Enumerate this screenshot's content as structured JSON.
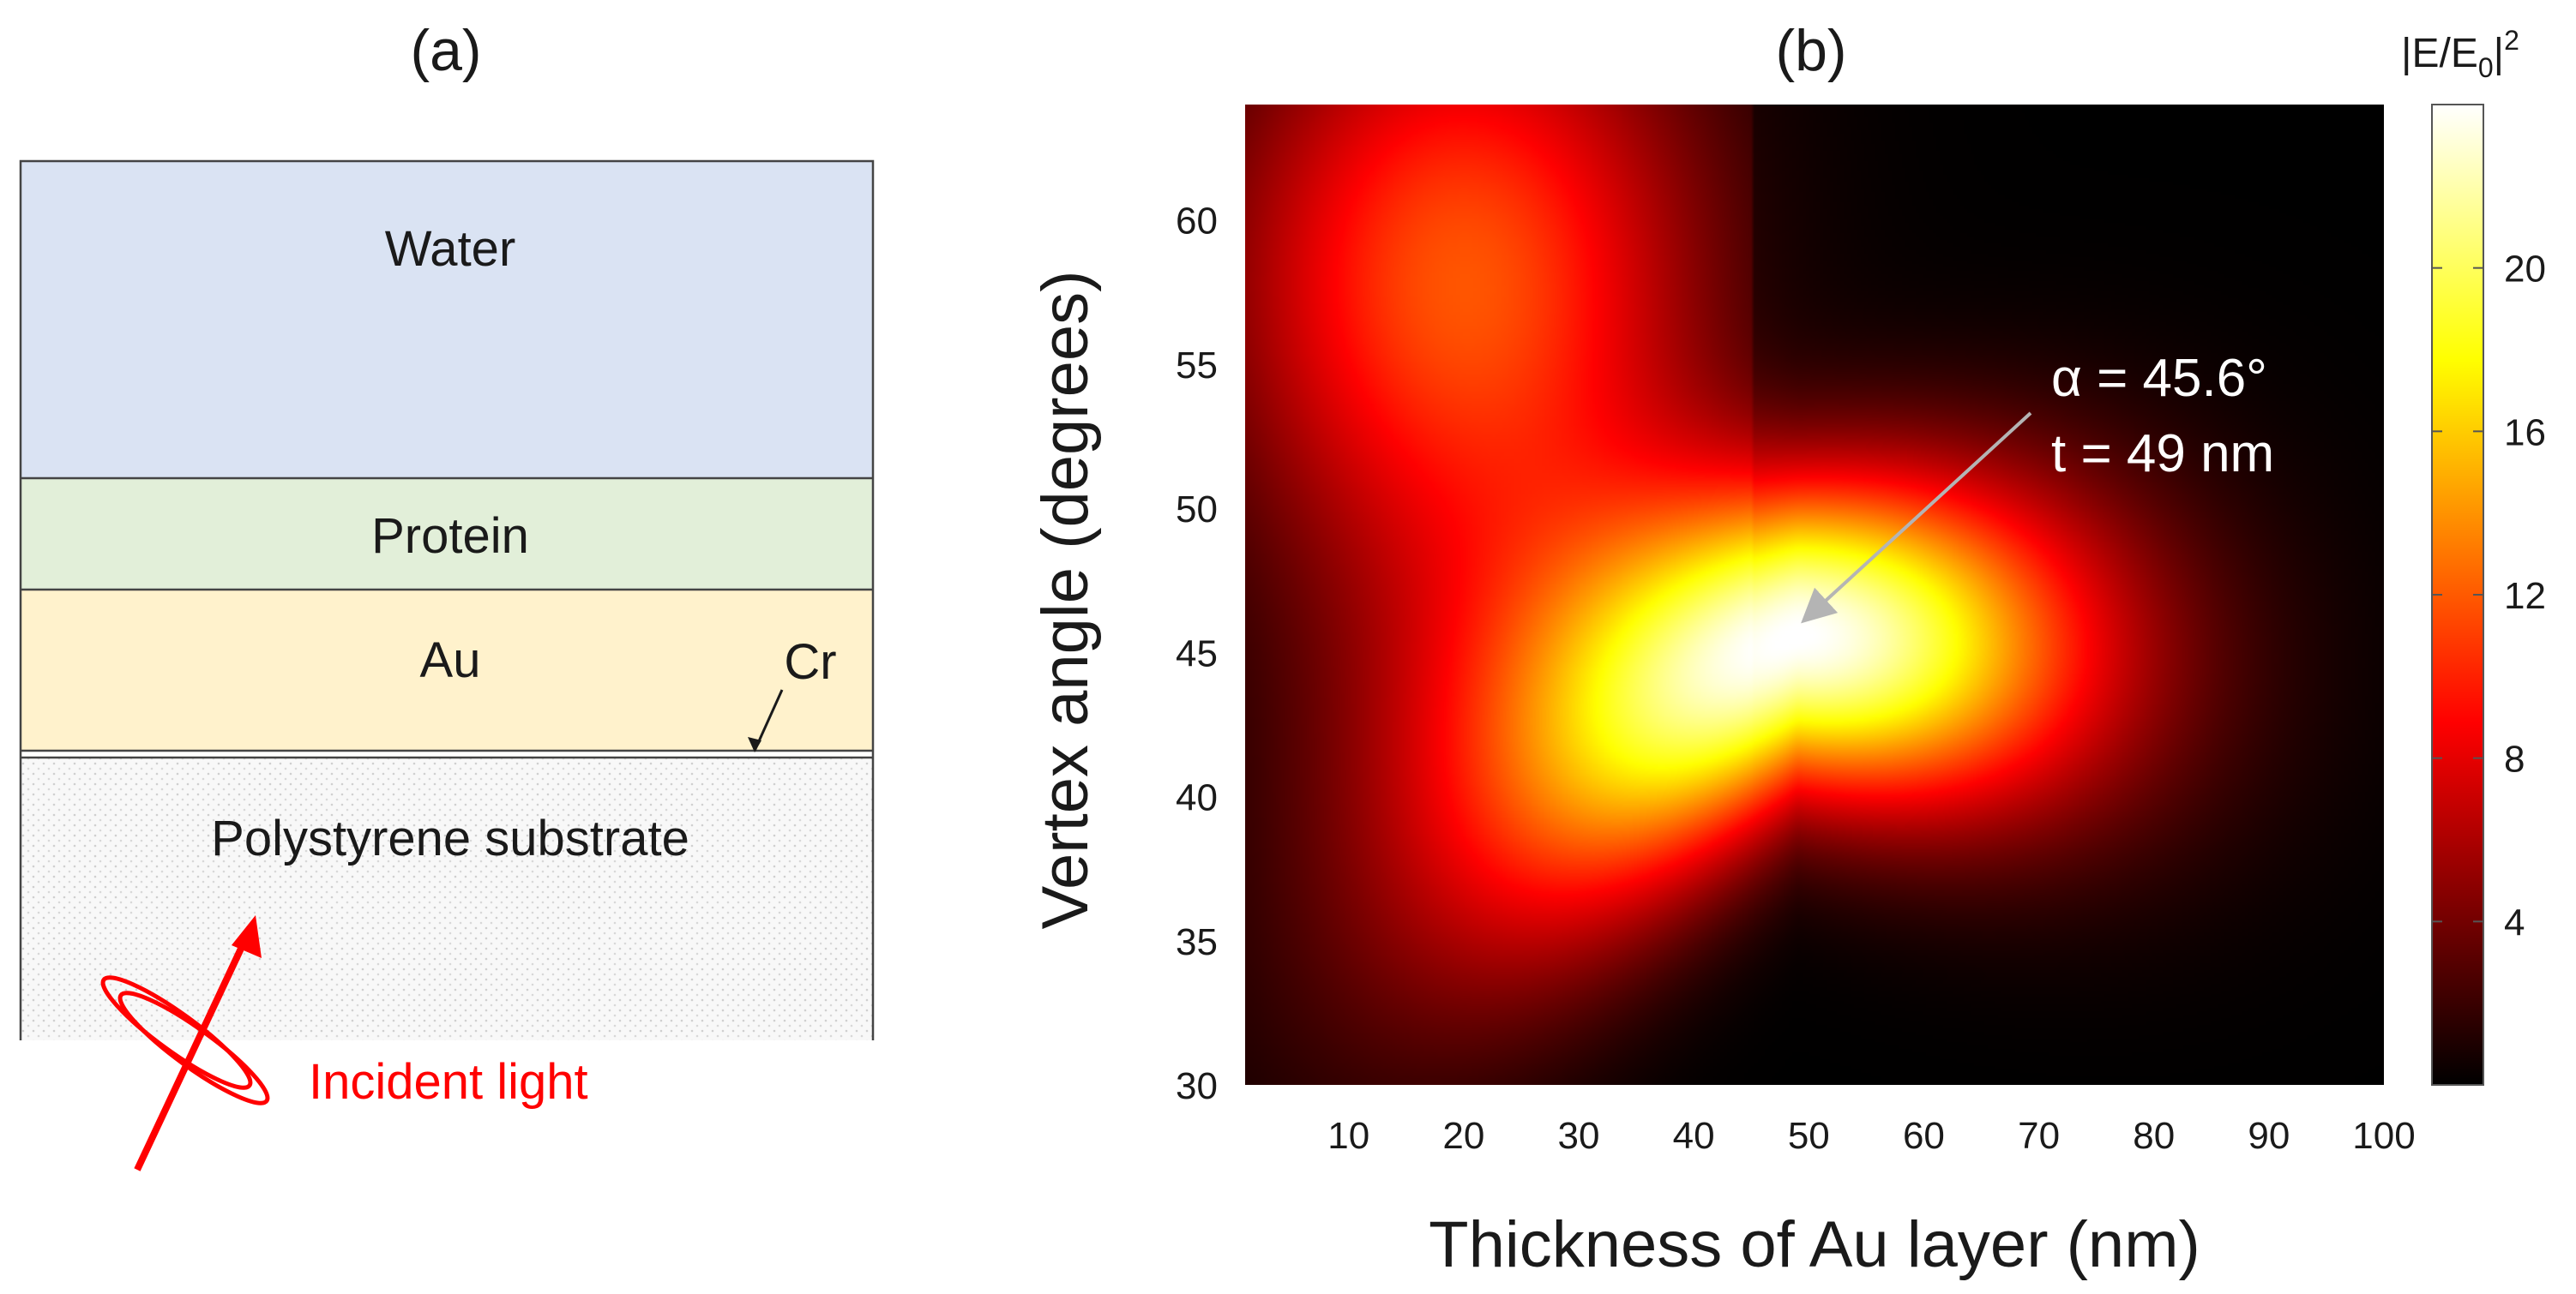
{
  "panels": {
    "a_label": "(a)",
    "b_label": "(b)"
  },
  "layers_diagram": {
    "layers": [
      {
        "name": "Water",
        "color": "#dae3f3"
      },
      {
        "name": "Protein",
        "color": "#e2efd9"
      },
      {
        "name": "Au",
        "color": "#fff2cc"
      },
      {
        "name": "Cr",
        "color": "#ffffff"
      },
      {
        "name": "Polystyrene substrate",
        "color": "#f7f7f7"
      }
    ],
    "incident_label": "Incident light",
    "incident_color": "#ff0000"
  },
  "chart_data": {
    "type": "heatmap",
    "title": "",
    "xlabel": "Thickness of Au layer (nm)",
    "ylabel": "Vertex angle (degrees)",
    "xlim": [
      1,
      100
    ],
    "ylim": [
      30,
      64
    ],
    "xticks": [
      10,
      20,
      30,
      40,
      50,
      60,
      70,
      80,
      90,
      100
    ],
    "yticks": [
      30,
      35,
      40,
      45,
      50,
      55,
      60
    ],
    "colorbar": {
      "label_main": "|E/E",
      "label_sub": "0",
      "label_sup": "2",
      "range": [
        0,
        24
      ],
      "ticks": [
        4,
        8,
        12,
        16,
        20
      ],
      "colormap": "hot"
    },
    "peak": {
      "x": 49,
      "y": 45.6,
      "value": 24
    },
    "annotation": {
      "line1": "α = 45.6°",
      "line2": "t = 49 nm",
      "color": "#ffffff"
    }
  }
}
